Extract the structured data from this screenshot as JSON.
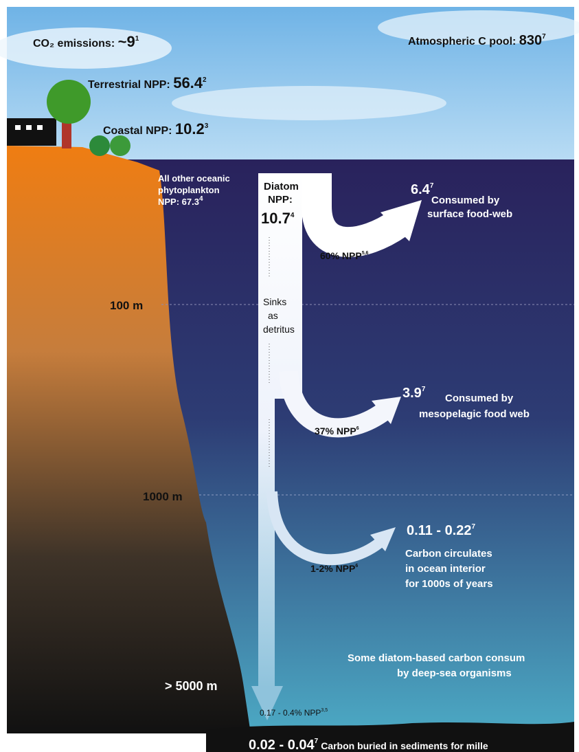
{
  "atmosphere": {
    "emissions": {
      "label": "CO₂ emissions:",
      "value": "~9",
      "ref": "1"
    },
    "pool": {
      "label": "Atmospheric C pool:",
      "value": "830",
      "ref": "7"
    }
  },
  "land": {
    "terrestrial": {
      "label": "Terrestrial NPP:",
      "value": "56.4",
      "ref": "2"
    },
    "coastal": {
      "label": "Coastal NPP:",
      "value": "10.2",
      "ref": "3"
    }
  },
  "ocean": {
    "other_phytoplankton": {
      "lines": [
        "All other oceanic",
        "phytoplankton",
        "NPP: 67.3"
      ],
      "ref": "4"
    },
    "diatom": {
      "lines": [
        "Diatom",
        "NPP:"
      ],
      "value": "10.7",
      "ref": "4"
    },
    "sinks": [
      "Sinks",
      "as",
      "detritus"
    ],
    "depths": [
      "100 m",
      "1000 m",
      "> 5000 m"
    ],
    "fluxes": [
      {
        "value": "6.4",
        "ref": "7",
        "lines": [
          "Consumed by",
          "surface food-web"
        ],
        "fraction": "60% NPP",
        "fraction_ref": "5,6"
      },
      {
        "value": "3.9",
        "ref": "7",
        "lines": [
          "Consumed by",
          "mesopelagic food web"
        ],
        "fraction": "37% NPP",
        "fraction_ref": "6"
      },
      {
        "value": "0.11 - 0.22",
        "ref": "7",
        "lines": [
          "Carbon circulates",
          "in ocean interior",
          "for 1000s of years"
        ],
        "fraction": "1-2% NPP",
        "fraction_ref": "6"
      }
    ],
    "deep_note": [
      "Some diatom-based carbon consum",
      "by deep-sea organisms"
    ],
    "seafloor": {
      "fraction": "0.17 - 0.4% NPP",
      "fraction_ref": "3,5",
      "value": "0.02 - 0.04",
      "ref": "7",
      "label": "Carbon buried in sediments for mille"
    }
  }
}
